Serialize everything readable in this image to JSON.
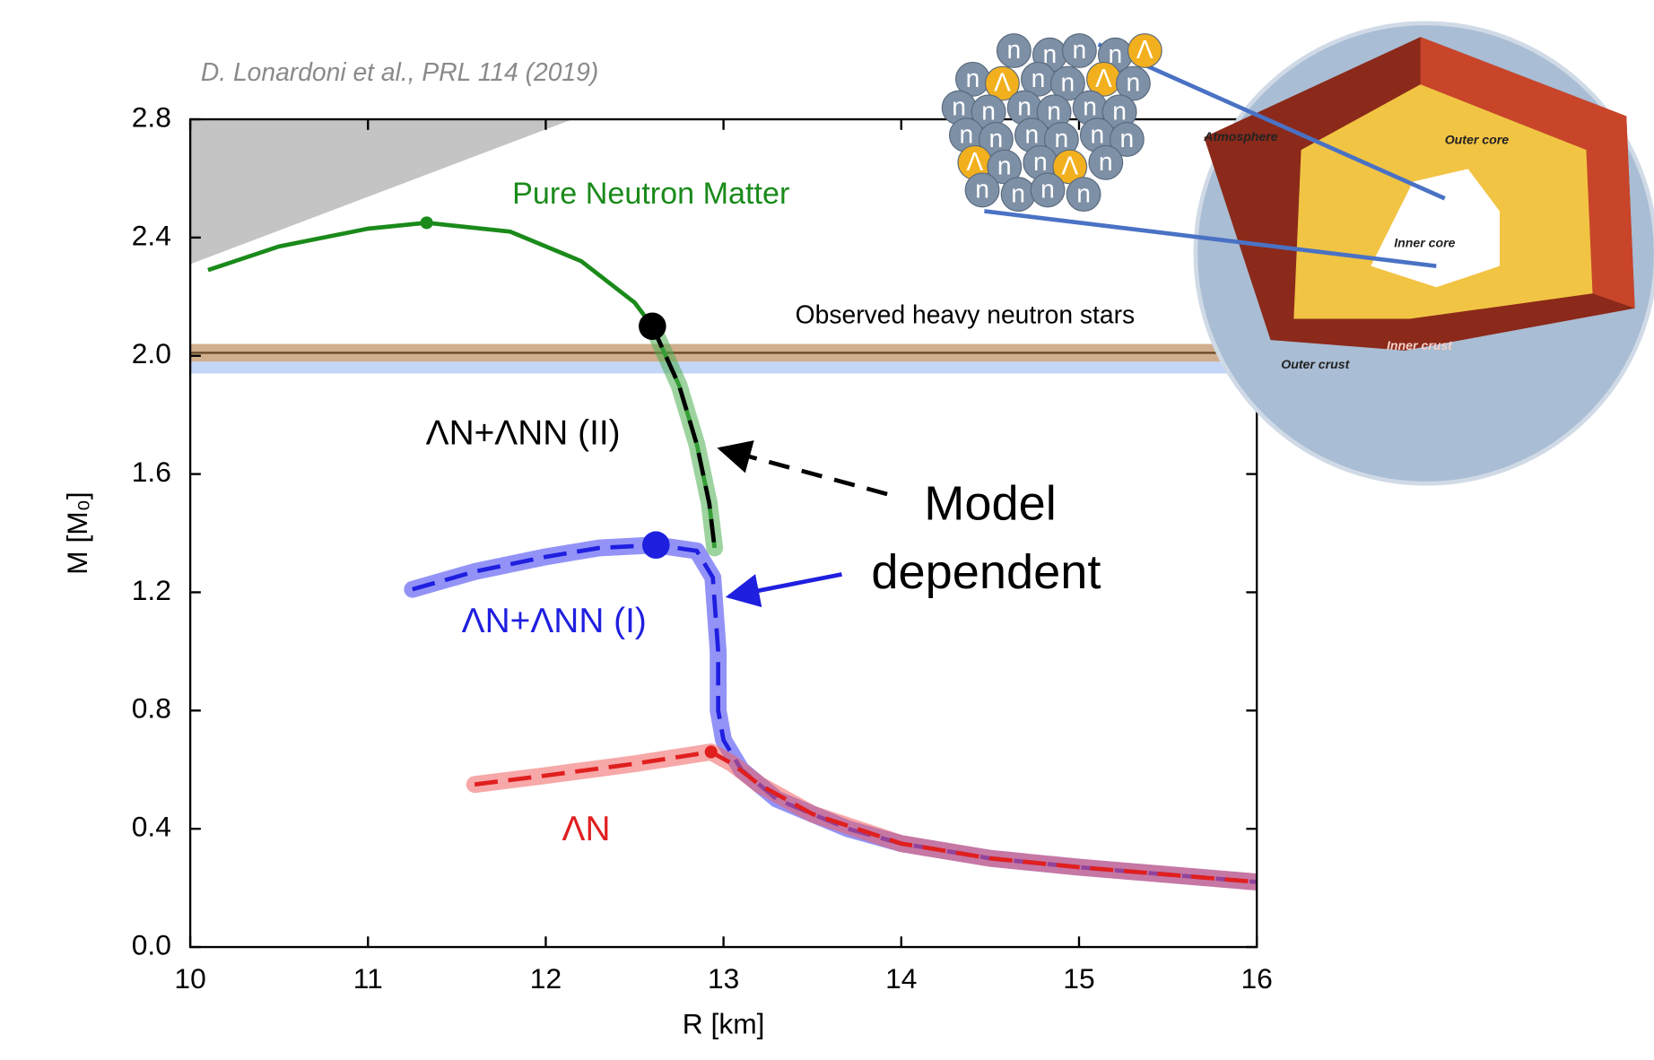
{
  "chart_data": {
    "type": "line",
    "credit": "D. Lonardoni et al., PRL 114 (2019)",
    "xlabel": "R [km]",
    "ylabel": "M [M₀]",
    "xlim": [
      10,
      16
    ],
    "ylim": [
      0,
      2.8
    ],
    "xticks": [
      10,
      11,
      12,
      13,
      14,
      15,
      16
    ],
    "yticks": [
      {
        "value": 0,
        "label": "0.0"
      },
      0.4,
      0.8,
      1.2,
      1.6,
      {
        "value": 2,
        "label": "2.0"
      },
      2.4,
      2.8
    ],
    "excluded_region": {
      "color": "#c4c4c4",
      "x": [
        10,
        12.15,
        10
      ],
      "y": [
        2.8,
        2.8,
        2.31
      ]
    },
    "bands": [
      {
        "color": "#c8a07a",
        "low": 1.98,
        "high": 2.04,
        "center": 2.01,
        "center_color": "#6b4a2a"
      },
      {
        "color": "#b9cff5",
        "low": 1.94,
        "high": 1.98
      }
    ],
    "series": [
      {
        "name": "Pure Neutron Matter",
        "color": "#1a8a1a",
        "dash": false,
        "x": [
          10.1,
          10.5,
          11,
          11.33,
          11.8,
          12.2,
          12.5,
          12.6,
          12.75,
          12.85,
          12.92,
          12.95
        ],
        "y": [
          2.29,
          2.37,
          2.43,
          2.45,
          2.42,
          2.32,
          2.18,
          2.1,
          1.9,
          1.7,
          1.5,
          1.35
        ],
        "marker": {
          "x": 11.33,
          "y": 2.45
        }
      },
      {
        "name": "ΛN+ΛNN (II)",
        "color": "#000000",
        "band_color": "#4caf50",
        "dash": true,
        "x": [
          12.6,
          12.75,
          12.85,
          12.92,
          12.95
        ],
        "y": [
          2.1,
          1.9,
          1.7,
          1.5,
          1.35
        ],
        "marker": {
          "x": 12.6,
          "y": 2.1
        }
      },
      {
        "name": "ΛN+ΛNN (I)",
        "color": "#1f1fe0",
        "band_color": "#3b3bf0",
        "dash": true,
        "x": [
          11.25,
          11.6,
          12,
          12.3,
          12.62,
          12.85,
          12.94,
          12.97,
          12.97,
          13,
          13.1,
          13.3,
          13.7,
          14,
          14.5,
          15,
          15.5,
          16
        ],
        "y": [
          1.21,
          1.27,
          1.32,
          1.35,
          1.36,
          1.34,
          1.25,
          1,
          0.8,
          0.7,
          0.6,
          0.5,
          0.4,
          0.35,
          0.3,
          0.27,
          0.245,
          0.22
        ],
        "marker": {
          "x": 12.62,
          "y": 1.36
        }
      },
      {
        "name": "ΛN",
        "color": "#e01f1f",
        "band_color": "#f06060",
        "dash": true,
        "x": [
          11.6,
          12,
          12.5,
          12.93,
          13.05,
          13.2,
          13.5,
          14,
          14.5,
          15,
          15.5,
          16
        ],
        "y": [
          0.55,
          0.58,
          0.62,
          0.66,
          0.62,
          0.55,
          0.45,
          0.35,
          0.3,
          0.27,
          0.245,
          0.22
        ],
        "marker": {
          "x": 12.93,
          "y": 0.66
        }
      }
    ],
    "annotations": [
      "Observed heavy neutron stars",
      "Model",
      "dependent"
    ]
  },
  "inset": {
    "labels": [
      "Atmosphere",
      "Outer core",
      "Inner core",
      "Inner crust",
      "Outer crust"
    ],
    "particles": [
      "n",
      "n",
      "n",
      "n",
      "Λ",
      "n",
      "Λ",
      "n",
      "n",
      "Λ",
      "n",
      "n",
      "n",
      "n",
      "n",
      "n",
      "n",
      "n",
      "n",
      "n",
      "n",
      "n",
      "n",
      "Λ",
      "n",
      "n",
      "Λ",
      "n",
      "n",
      "n",
      "n",
      "n"
    ]
  }
}
